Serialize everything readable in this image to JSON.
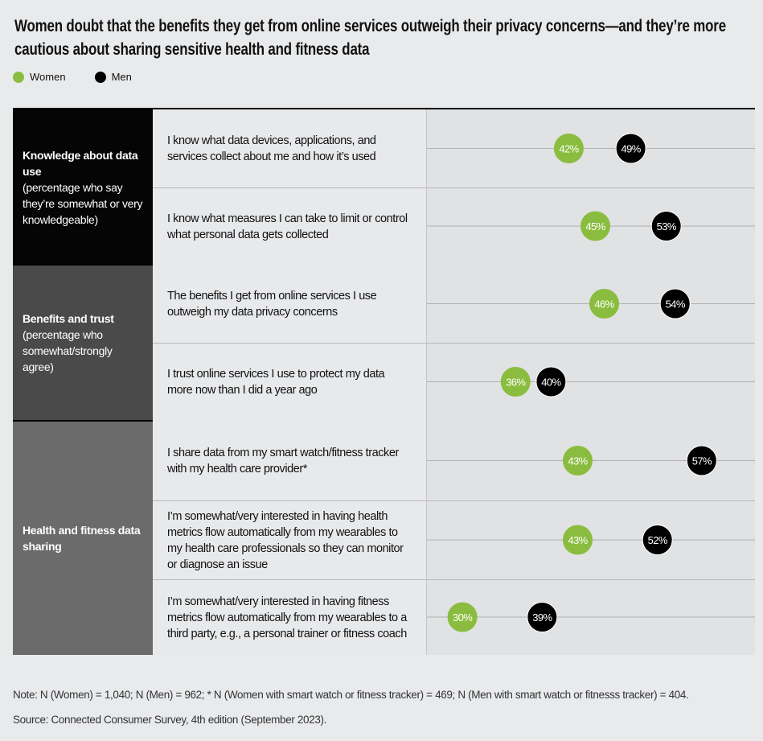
{
  "title": "Women doubt that the benefits they get from online services outweigh their privacy concerns—and they’re more cautious about sharing sensitive health and fitness data",
  "legend": [
    {
      "label": "Women",
      "color": "#8abd3f"
    },
    {
      "label": "Men",
      "color": "#000000"
    }
  ],
  "sections": [
    {
      "title": "Knowledge about data use",
      "subtitle": "(percentage who say they’re somewhat or very knowledgeable)",
      "color": "#050505"
    },
    {
      "title": "Benefits and trust",
      "subtitle": "(percentage who somewhat/strongly agree)",
      "color": "#4a4a4a"
    },
    {
      "title": "Health and fitness data sharing",
      "subtitle": "",
      "color": "#6b6b6b"
    }
  ],
  "chart_data": {
    "type": "dot",
    "xlim": [
      26,
      63
    ],
    "grid": false,
    "legend_placement": "top-left",
    "categories": [
      "I know what data devices, applications, and services collect about me and how it’s used",
      "I know what measures I can take to limit or control what personal data gets collected",
      "The benefits I get from online services I use outweigh my data privacy concerns",
      "I trust online services I use to protect my data more now than I did a year ago",
      "I share data from my smart watch/fitness tracker with my health care provider*",
      "I’m somewhat/very interested in having health metrics flow automatically from my wearables to my health care professionals so they can monitor or diagnose an issue",
      "I’m somewhat/very interested in having fitness metrics flow automatically from my wearables to a third party, e.g., a personal trainer or fitness coach"
    ],
    "category_section": [
      0,
      0,
      1,
      1,
      2,
      2,
      2
    ],
    "series": [
      {
        "name": "Women",
        "color": "#8abd3f",
        "values": [
          42,
          45,
          46,
          36,
          43,
          43,
          30
        ],
        "labels": [
          "42%",
          "45%",
          "46%",
          "36%",
          "43%",
          "43%",
          "30%"
        ]
      },
      {
        "name": "Men",
        "color": "#000000",
        "values": [
          49,
          53,
          54,
          40,
          57,
          52,
          39
        ],
        "labels": [
          "49%",
          "53%",
          "54%",
          "40%",
          "57%",
          "52%",
          "39%"
        ]
      }
    ]
  },
  "note": "Note: N (Women) = 1,040; N (Men) = 962; * N (Women with smart watch or fitness tracker) = 469; N (Men with smart watch or fitnesss tracker) = 404.",
  "source": "Source: Connected Consumer Survey, 4th edition (September 2023)."
}
